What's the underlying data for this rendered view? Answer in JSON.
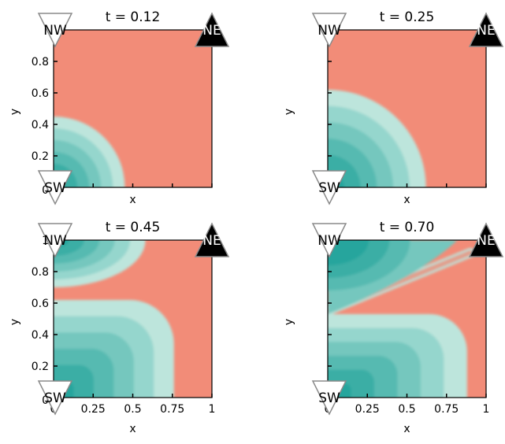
{
  "chart_data": [
    {
      "type": "heatmap",
      "title": "t = 0.12",
      "time": 0.12,
      "xlabel": "x",
      "ylabel": "y",
      "xlim": [
        0,
        1
      ],
      "ylim": [
        0,
        1
      ],
      "xticks": [],
      "yticks": [
        "0.2",
        "0.4",
        "0.6",
        "0.8"
      ],
      "origin_label": "0",
      "grid": false,
      "markers": [
        {
          "label": "NW",
          "shape": "triangle-down",
          "fill": "#ffffff"
        },
        {
          "label": "NE",
          "shape": "triangle-up",
          "fill": "#000000"
        },
        {
          "label": "SW",
          "shape": "triangle-down",
          "fill": "#ffffff"
        }
      ],
      "regions": [
        {
          "type": "quarter-disc",
          "center": [
            0,
            0
          ],
          "radius": 0.45
        }
      ]
    },
    {
      "type": "heatmap",
      "title": "t = 0.25",
      "time": 0.25,
      "xlabel": "x",
      "ylabel": "y",
      "xlim": [
        0,
        1
      ],
      "ylim": [
        0,
        1
      ],
      "xticks": [],
      "yticks": [],
      "origin_label": "",
      "grid": false,
      "markers": [
        {
          "label": "NW",
          "shape": "triangle-down",
          "fill": "#ffffff"
        },
        {
          "label": "NE",
          "shape": "triangle-up",
          "fill": "#000000"
        },
        {
          "label": "SW",
          "shape": "triangle-down",
          "fill": "#ffffff"
        }
      ],
      "regions": [
        {
          "type": "quarter-disc",
          "center": [
            0,
            0
          ],
          "radius": 0.62
        }
      ]
    },
    {
      "type": "heatmap",
      "title": "t = 0.45",
      "time": 0.45,
      "xlabel": "x",
      "ylabel": "y",
      "xlim": [
        0,
        1
      ],
      "ylim": [
        0,
        1
      ],
      "xticks": [
        "0",
        "0.25",
        "0.5",
        "0.75",
        "1"
      ],
      "yticks": [
        "0.2",
        "0.4",
        "0.6",
        "0.8",
        "1"
      ],
      "origin_label": "0",
      "grid": false,
      "markers": [
        {
          "label": "NW",
          "shape": "triangle-down",
          "fill": "#ffffff"
        },
        {
          "label": "NE",
          "shape": "triangle-up",
          "fill": "#000000"
        },
        {
          "label": "SW",
          "shape": "triangle-down",
          "fill": "#ffffff"
        }
      ],
      "regions": [
        {
          "type": "rounded-corner-block",
          "x_extent": 0.76,
          "y_extent": 0.62
        },
        {
          "type": "quarter-ellipse",
          "center": [
            0,
            1
          ],
          "rx": 0.58,
          "ry": 0.3
        }
      ]
    },
    {
      "type": "heatmap",
      "title": "t = 0.70",
      "time": 0.7,
      "xlabel": "x",
      "ylabel": "y",
      "xlim": [
        0,
        1
      ],
      "ylim": [
        0,
        1
      ],
      "xticks": [
        "0",
        "0.25",
        "0.5",
        "0.75",
        "1"
      ],
      "yticks": [],
      "origin_label": "",
      "grid": false,
      "markers": [
        {
          "label": "NW",
          "shape": "triangle-down",
          "fill": "#ffffff"
        },
        {
          "label": "NE",
          "shape": "triangle-up",
          "fill": "#000000"
        },
        {
          "label": "SW",
          "shape": "triangle-down",
          "fill": "#ffffff"
        }
      ],
      "regions": [
        {
          "type": "rounded-corner-block",
          "x_extent": 0.88,
          "y_extent": 0.53
        },
        {
          "type": "diagonal-band",
          "from": [
            0,
            0.55
          ],
          "to": [
            0.9,
            0.92
          ]
        }
      ]
    }
  ],
  "colors": {
    "background_field": "#f28c78",
    "bands": [
      "#27a59d",
      "#3aaea5",
      "#57bab1",
      "#74c7be",
      "#95d6cd",
      "#bde5dc"
    ],
    "marker_stroke": "#8a8a8a"
  }
}
